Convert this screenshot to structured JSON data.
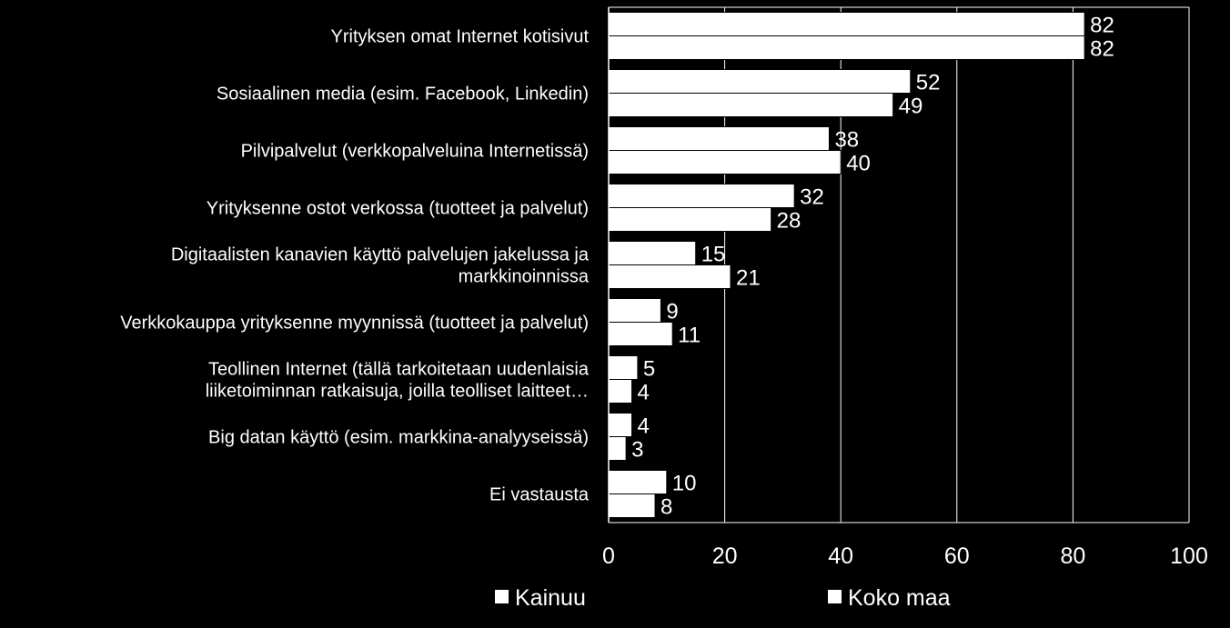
{
  "chart_data": {
    "type": "bar",
    "orientation": "horizontal",
    "categories": [
      [
        "Yrityksen omat Internet kotisivut"
      ],
      [
        "Sosiaalinen media (esim. Facebook, Linkedin)"
      ],
      [
        "Pilvipalvelut  (verkkopalveluina Internetissä)"
      ],
      [
        "Yrityksenne ostot verkossa (tuotteet ja palvelut)"
      ],
      [
        "Digitaalisten kanavien käyttö palvelujen jakelussa ja",
        "markkinoinnissa"
      ],
      [
        "Verkkokauppa yrityksenne myynnissä (tuotteet ja palvelut)"
      ],
      [
        "Teollinen Internet (tällä tarkoitetaan uudenlaisia",
        "liiketoiminnan ratkaisuja, joilla teolliset laitteet…"
      ],
      [
        "Big datan käyttö (esim. markkina-analyyseissä)"
      ],
      [
        "Ei vastausta"
      ]
    ],
    "series": [
      {
        "name": "Kainuu",
        "values": [
          82,
          52,
          38,
          32,
          15,
          9,
          5,
          4,
          10
        ]
      },
      {
        "name": "Koko maa",
        "values": [
          82,
          49,
          40,
          28,
          21,
          11,
          4,
          3,
          8
        ]
      }
    ],
    "xlim": [
      0,
      100
    ],
    "xticks": [
      0,
      20,
      40,
      60,
      80,
      100
    ],
    "grid": true,
    "legend_position": "bottom",
    "colors": {
      "background": "#000000",
      "bar": "#ffffff",
      "text": "#ffffff",
      "grid": "#ffffff"
    }
  }
}
